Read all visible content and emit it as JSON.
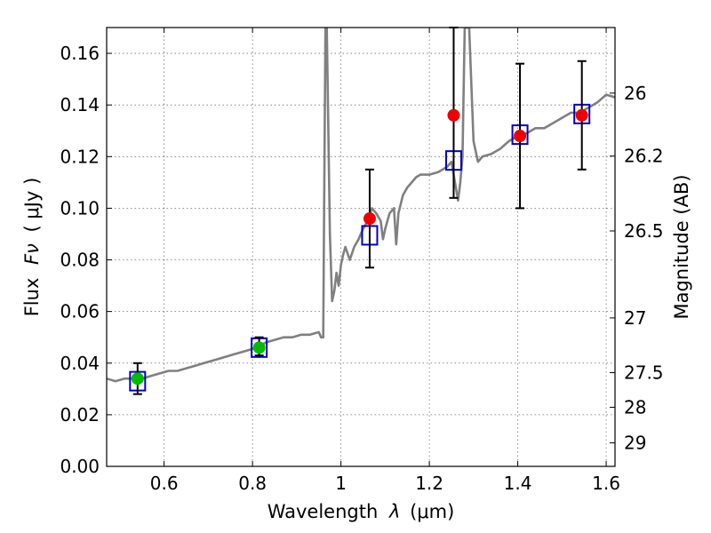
{
  "chart_data": {
    "type": "line",
    "xlabel_prefix": "Wavelength",
    "xlabel_symbol": "λ",
    "xlabel_units": "(μm)",
    "ylabel_prefix": "Flux",
    "ylabel_symbol": "Fν",
    "ylabel_units": "( μJy )",
    "y2label": "Magnitude (AB)",
    "xlim": [
      0.47,
      1.62
    ],
    "ylim": [
      0.0,
      0.17
    ],
    "xticks": [
      0.6,
      0.8,
      1.0,
      1.2,
      1.4,
      1.6
    ],
    "xtick_labels": [
      "0.6",
      "0.8",
      "1",
      "1.2",
      "1.4",
      "1.6"
    ],
    "yticks": [
      0.0,
      0.02,
      0.04,
      0.06,
      0.08,
      0.1,
      0.12,
      0.14,
      0.16
    ],
    "ytick_labels": [
      "0.00",
      "0.02",
      "0.04",
      "0.06",
      "0.08",
      "0.10",
      "0.12",
      "0.14",
      "0.16"
    ],
    "y2ticks": [
      {
        "label": "26",
        "flux": 0.1446
      },
      {
        "label": "26.2",
        "flux": 0.1202
      },
      {
        "label": "26.5",
        "flux": 0.0912
      },
      {
        "label": "27",
        "flux": 0.0575
      },
      {
        "label": "27.5",
        "flux": 0.0363
      },
      {
        "label": "28",
        "flux": 0.0229
      },
      {
        "label": "29",
        "flux": 0.0091
      }
    ],
    "grid": true,
    "colors": {
      "spectrum": "#808080",
      "model": "#0000cc",
      "detected": "#00bb00",
      "measured": "#ee0000",
      "errorbar": "#000000"
    },
    "spectrum": {
      "x": [
        0.47,
        0.49,
        0.51,
        0.53,
        0.55,
        0.57,
        0.59,
        0.61,
        0.63,
        0.65,
        0.67,
        0.69,
        0.71,
        0.73,
        0.75,
        0.77,
        0.79,
        0.81,
        0.83,
        0.85,
        0.87,
        0.89,
        0.91,
        0.93,
        0.95,
        0.955,
        0.96,
        0.962,
        0.965,
        0.968,
        0.975,
        0.98,
        0.985,
        0.99,
        0.995,
        1.0,
        1.005,
        1.01,
        1.02,
        1.03,
        1.04,
        1.05,
        1.06,
        1.07,
        1.08,
        1.09,
        1.095,
        1.1,
        1.11,
        1.12,
        1.125,
        1.13,
        1.14,
        1.15,
        1.16,
        1.17,
        1.18,
        1.2,
        1.22,
        1.24,
        1.25,
        1.26,
        1.265,
        1.27,
        1.275,
        1.28,
        1.285,
        1.29,
        1.3,
        1.31,
        1.32,
        1.34,
        1.36,
        1.38,
        1.4,
        1.42,
        1.44,
        1.46,
        1.48,
        1.5,
        1.52,
        1.54,
        1.56,
        1.58,
        1.6,
        1.62
      ],
      "y": [
        0.034,
        0.033,
        0.034,
        0.034,
        0.034,
        0.035,
        0.036,
        0.037,
        0.037,
        0.038,
        0.039,
        0.04,
        0.041,
        0.042,
        0.043,
        0.044,
        0.045,
        0.046,
        0.048,
        0.049,
        0.05,
        0.05,
        0.051,
        0.051,
        0.052,
        0.05,
        0.05,
        0.1,
        0.17,
        0.17,
        0.09,
        0.064,
        0.068,
        0.075,
        0.07,
        0.078,
        0.082,
        0.085,
        0.08,
        0.085,
        0.088,
        0.092,
        0.095,
        0.1,
        0.098,
        0.095,
        0.088,
        0.092,
        0.098,
        0.1,
        0.086,
        0.098,
        0.105,
        0.108,
        0.11,
        0.112,
        0.113,
        0.113,
        0.114,
        0.116,
        0.118,
        0.108,
        0.103,
        0.11,
        0.12,
        0.17,
        0.17,
        0.17,
        0.126,
        0.118,
        0.12,
        0.121,
        0.123,
        0.126,
        0.128,
        0.129,
        0.131,
        0.131,
        0.133,
        0.135,
        0.137,
        0.137,
        0.139,
        0.141,
        0.144,
        0.143
      ]
    },
    "model_points": {
      "x": [
        0.54,
        0.815,
        1.065,
        1.255,
        1.405,
        1.545
      ],
      "y": [
        0.033,
        0.046,
        0.0895,
        0.1185,
        0.1285,
        0.1365
      ]
    },
    "detected_points": {
      "x": [
        0.54,
        0.815
      ],
      "y": [
        0.034,
        0.046
      ],
      "yerr_low": [
        0.006,
        0.003
      ],
      "yerr_high": [
        0.006,
        0.004
      ]
    },
    "measured_points": {
      "x": [
        1.065,
        1.255,
        1.405,
        1.545
      ],
      "y": [
        0.096,
        0.136,
        0.128,
        0.136
      ],
      "yerr_low": [
        0.019,
        0.032,
        0.028,
        0.021
      ],
      "yerr_high": [
        0.019,
        0.034,
        0.028,
        0.021
      ]
    }
  }
}
